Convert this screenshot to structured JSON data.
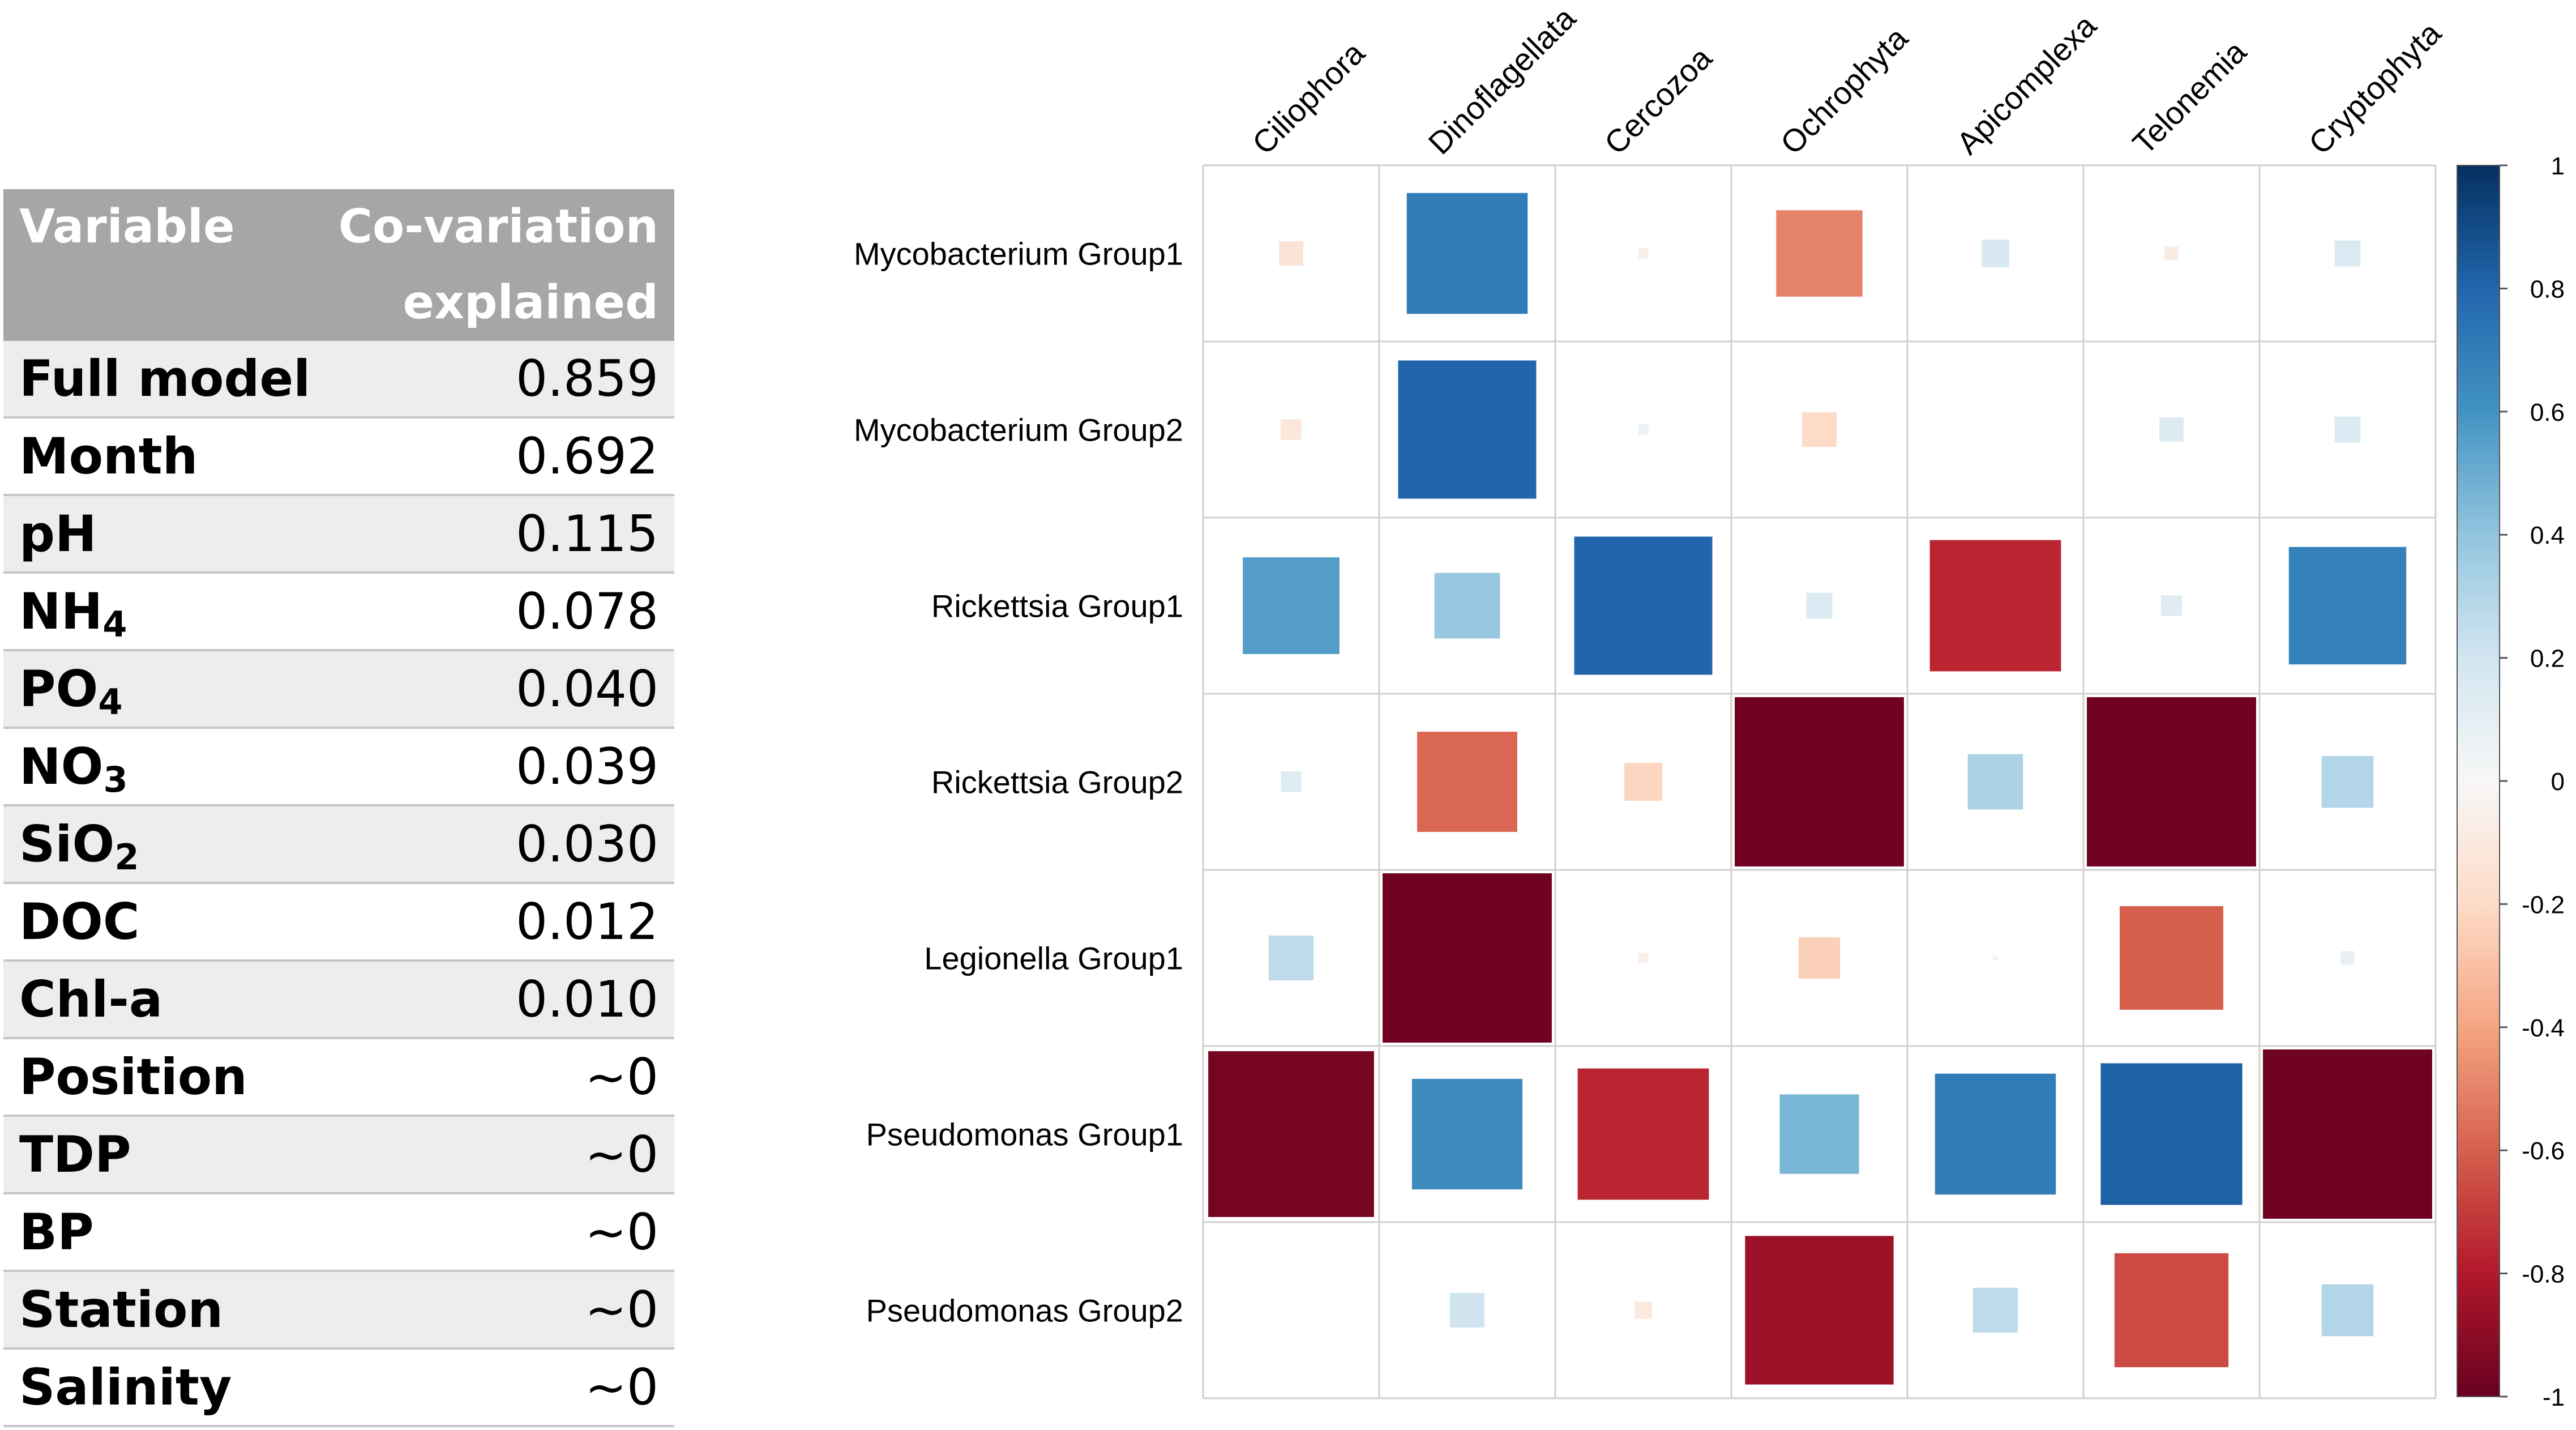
{
  "table": {
    "header": {
      "variable": "Variable",
      "covariation_line1": "Co-variation",
      "covariation_line2": "explained"
    },
    "rows": [
      {
        "name": "Full model",
        "sub": "",
        "value": "0.859"
      },
      {
        "name": "Month",
        "sub": "",
        "value": "0.692"
      },
      {
        "name": "pH",
        "sub": "",
        "value": "0.115"
      },
      {
        "name": "NH",
        "sub": "4",
        "value": "0.078"
      },
      {
        "name": "PO",
        "sub": "4",
        "value": "0.040"
      },
      {
        "name": "NO",
        "sub": "3",
        "value": "0.039"
      },
      {
        "name": "SiO",
        "sub": "2",
        "value": "0.030"
      },
      {
        "name": "DOC",
        "sub": "",
        "value": "0.012"
      },
      {
        "name": "Chl-a",
        "sub": "",
        "value": "0.010"
      },
      {
        "name": "Position",
        "sub": "",
        "value": "~0"
      },
      {
        "name": "TDP",
        "sub": "",
        "value": "~0"
      },
      {
        "name": "BP",
        "sub": "",
        "value": "~0"
      },
      {
        "name": "Station",
        "sub": "",
        "value": "~0"
      },
      {
        "name": "Salinity",
        "sub": "",
        "value": "~0"
      }
    ]
  },
  "chart_data": {
    "type": "heatmap",
    "columns": [
      "Ciliophora",
      "Dinoflagellata",
      "Cercozoa",
      "Ochrophyta",
      "Apicomplexa",
      "Telonemia",
      "Cryptophyta"
    ],
    "rows": [
      "Mycobacterium Group1",
      "Mycobacterium Group2",
      "Rickettsia Group1",
      "Rickettsia Group2",
      "Legionella Group1",
      "Pseudomonas Group1",
      "Pseudomonas Group2"
    ],
    "values": [
      [
        -0.14,
        0.7,
        -0.06,
        -0.5,
        0.16,
        -0.08,
        0.15
      ],
      [
        -0.12,
        0.8,
        0.06,
        -0.2,
        0.0,
        0.14,
        0.15
      ],
      [
        0.56,
        0.38,
        0.8,
        0.15,
        -0.76,
        0.12,
        0.68
      ],
      [
        0.12,
        -0.58,
        -0.22,
        -0.98,
        0.32,
        -0.98,
        0.3
      ],
      [
        0.26,
        -0.98,
        -0.06,
        -0.24,
        0.03,
        -0.6,
        0.08
      ],
      [
        -0.96,
        0.64,
        -0.76,
        0.46,
        0.7,
        0.82,
        -0.98
      ],
      [
        0.0,
        0.2,
        -0.1,
        -0.86,
        0.26,
        -0.66,
        0.3
      ]
    ],
    "color_range": [
      -1,
      1
    ],
    "colorbar_ticks": [
      "1",
      "0.8",
      "0.6",
      "0.4",
      "0.2",
      "0",
      "-0.2",
      "-0.4",
      "-0.6",
      "-0.8",
      "-1"
    ],
    "legend": "right"
  }
}
